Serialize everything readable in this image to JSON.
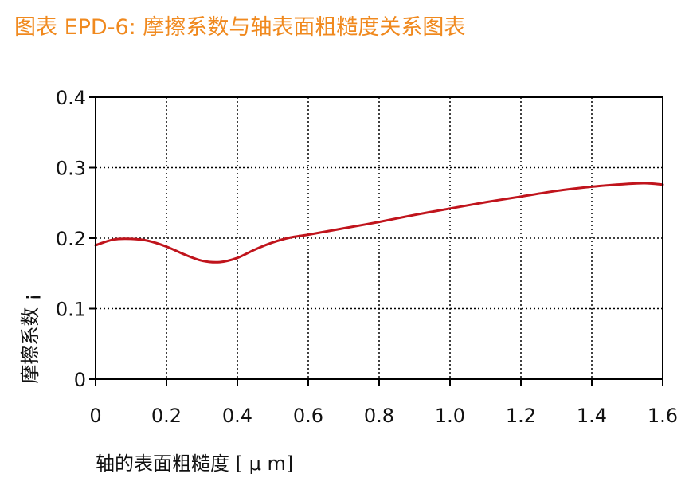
{
  "header": {
    "title": "图表 EPD-6: 摩擦系数与轴表面粗糙度关系图表"
  },
  "colors": {
    "title": "#f0891e",
    "line": "#c0141c",
    "grid": "#000000",
    "text": "#111111"
  },
  "chart_data": {
    "type": "line",
    "title": "",
    "xlabel": "轴的表面粗糙度 [ μ m]",
    "ylabel": "摩擦系数 ¡",
    "xlim": [
      0,
      1.6
    ],
    "ylim": [
      0,
      0.4
    ],
    "xticks": [
      "0",
      "0.2",
      "0.4",
      "0.6",
      "0.8",
      "1.0",
      "1.2",
      "1.4",
      "1.6"
    ],
    "yticks": [
      "0",
      "0.1",
      "0.2",
      "0.3",
      "0.4"
    ],
    "grid": true,
    "x": [
      0,
      0.05,
      0.1,
      0.15,
      0.2,
      0.25,
      0.3,
      0.35,
      0.4,
      0.45,
      0.5,
      0.55,
      0.6,
      0.7,
      0.8,
      0.9,
      1.0,
      1.1,
      1.2,
      1.3,
      1.4,
      1.5,
      1.55,
      1.6
    ],
    "series": [
      {
        "values": [
          0.19,
          0.198,
          0.199,
          0.196,
          0.188,
          0.177,
          0.168,
          0.166,
          0.172,
          0.184,
          0.194,
          0.201,
          0.205,
          0.214,
          0.223,
          0.233,
          0.242,
          0.251,
          0.259,
          0.267,
          0.273,
          0.277,
          0.278,
          0.276
        ]
      }
    ]
  }
}
